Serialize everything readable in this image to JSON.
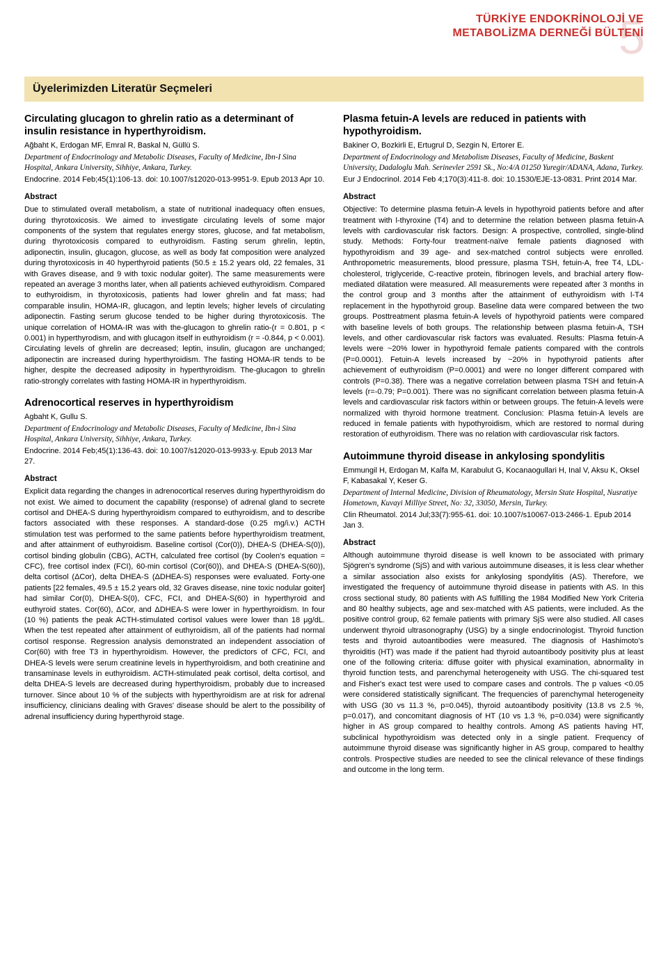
{
  "header": {
    "org_line1": "TÜRKİYE ENDOKRİNOLOJİ VE",
    "org_line2": "METABOLİZMA DERNEĞİ BÜLTENİ",
    "page_number": "5",
    "section_title": "Üyelerimizden Literatür Seçmeleri"
  },
  "colors": {
    "accent_red": "#c9302c",
    "strip_bg": "#f1e2b0",
    "pagenum_faint": "#f0d8d7",
    "text": "#000000",
    "bg": "#ffffff"
  },
  "left": {
    "a1": {
      "title": "Circulating glucagon to ghrelin ratio as a determinant of insulin resistance in hyperthyroidism.",
      "authors": "Ağbaht K, Erdogan MF, Emral R, Baskal N, Güllü S.",
      "affil": "Department of Endocrinology and Metabolic Diseases, Faculty of Medicine, Ibn-I Sina Hospital, Ankara University, Sihhiye, Ankara, Turkey.",
      "cite": "Endocrine. 2014 Feb;45(1):106-13. doi: 10.1007/s12020-013-9951-9. Epub 2013 Apr 10.",
      "abs_label": "Abstract",
      "abs": "Due to stimulated overall metabolism, a state of nutritional inadequacy often ensues, during thyrotoxicosis. We aimed to investigate circulating levels of some major components of the system that regulates energy stores, glucose, and fat metabolism, during thyrotoxicosis compared to euthyroidism. Fasting serum ghrelin, leptin, adiponectin, insulin, glucagon, glucose, as well as body fat composition were analyzed during thyrotoxicosis in 40 hyperthyroid patients (50.5 ± 15.2 years old, 22 females, 31 with Graves disease, and 9 with toxic nodular goiter). The same measurements were repeated an average 3 months later, when all patients achieved euthyroidism. Compared to euthyroidism, in thyrotoxicosis, patients had lower ghrelin and fat mass; had comparable insulin, HOMA-IR, glucagon, and leptin levels; higher levels of circulating adiponectin. Fasting serum glucose tended to be higher during thyrotoxicosis. The unique correlation of HOMA-IR was with the-glucagon to ghrelin ratio-(r = 0.801, p < 0.001) in hyperthyrodism, and with glucagon itself in euthyroidism (r = -0.844, p < 0.001). Circulating levels of ghrelin are decreased; leptin, insulin, glucagon are unchanged; adiponectin are increased during hyperthyroidism. The fasting HOMA-IR tends to be higher, despite the decreased adiposity in hyperthyroidism. The-glucagon to ghrelin ratio-strongly correlates with fasting HOMA-IR in hyperthyroidism."
    },
    "a2": {
      "title": "Adrenocortical reserves in hyperthyroidism",
      "authors": "Agbaht K, Gullu S.",
      "affil": "Department of Endocrinology and Metabolic Diseases, Faculty of Medicine, Ibn-i Sina Hospital, Ankara University, Sihhiye, Ankara, Turkey.",
      "cite": "Endocrine. 2014 Feb;45(1):136-43. doi: 10.1007/s12020-013-9933-y. Epub 2013 Mar 27.",
      "abs_label": "Abstract",
      "abs": "Explicit data regarding the changes in adrenocortical reserves during hyperthyroidism do not exist. We aimed to document the capability (response) of adrenal gland to secrete cortisol and DHEA-S during hyperthyroidism compared to euthyroidism, and to describe factors associated with these responses. A standard-dose (0.25 mg/i.v.) ACTH stimulation test was performed to the same patients before hyperthyroidism treatment, and after attainment of euthyroidism. Baseline cortisol (Cor(0)), DHEA-S (DHEA-S(0)), cortisol binding globulin (CBG), ACTH, calculated free cortisol (by Coolen's equation = CFC), free cortisol index (FCI), 60-min cortisol (Cor(60)), and DHEA-S (DHEA-S(60)), delta cortisol (ΔCor), delta DHEA-S (ΔDHEA-S) responses were evaluated. Forty-one patients [22 females, 49.5 ± 15.2 years old, 32 Graves disease, nine toxic nodular goiter] had similar Cor(0), DHEA-S(0), CFC, FCI, and DHEA-S(60) in hyperthyroid and euthyroid states. Cor(60), ΔCor, and ΔDHEA-S were lower in hyperthyroidism. In four (10 %) patients the peak ACTH-stimulated cortisol values were lower than 18 μg/dL. When the test repeated after attainment of euthyroidism, all of the patients had normal cortisol response. Regression analysis demonstrated an independent association of Cor(60) with free T3 in hyperthyroidism. However, the predictors of CFC, FCI, and DHEA-S levels were serum creatinine levels in hyperthyroidism, and both creatinine and transaminase levels in euthyroidism. ACTH-stimulated peak cortisol, delta cortisol, and delta DHEA-S levels are decreased during hyperthyroidism, probably due to increased turnover. Since about 10 % of the subjects with hyperthyroidism are at risk for adrenal insufficiency, clinicians dealing with Graves' disease should be alert to the possibility of adrenal insufficiency during hyperthyroid stage."
    }
  },
  "right": {
    "a1": {
      "title": "Plasma fetuin-A levels are reduced in patients with hypothyroidism.",
      "authors": "Bakiner O, Bozkirli E, Ertugrul D, Sezgin N, Ertorer E.",
      "affil": "Department of Endocrinology and Metabolism Diseases, Faculty of Medicine, Baskent University, Dadaloglu Mah. Serinevler 2591 Sk., No:4/A 01250 Yuregir/ADANA, Adana, Turkey.",
      "cite": "Eur J Endocrinol. 2014 Feb 4;170(3):411-8. doi: 10.1530/EJE-13-0831. Print 2014 Mar.",
      "abs_label": "Abstract",
      "abs": "Objective: To determine plasma fetuin-A levels in hypothyroid patients before and after treatment with l-thyroxine (T4) and to determine the relation between plasma fetuin-A levels with cardiovascular risk factors.\nDesign: A prospective, controlled, single-blind study.\nMethods: Forty-four treatment-naïve female patients diagnosed with hypothyroidism and 39 age- and sex-matched control subjects were enrolled. Anthropometric measurements, blood pressure, plasma TSH, fetuin-A, free T4, LDL-cholesterol, triglyceride, C-reactive protein, fibrinogen levels, and brachial artery flow-mediated dilatation were measured. All measurements were repeated after 3 months in the control group and 3 months after the attainment of euthyroidism with l-T4 replacement in the hypothyroid group. Baseline data were compared between the two groups. Posttreatment plasma fetuin-A levels of hypothyroid patients were compared with baseline levels of both groups. The relationship between plasma fetuin-A, TSH levels, and other cardiovascular risk factors was evaluated.\nResults: Plasma fetuin-A levels were ~20% lower in hypothyroid female patients compared with the controls (P=0.0001). Fetuin-A levels increased by ~20% in hypothyroid patients after achievement of euthyroidism (P=0.0001) and were no longer different compared with controls (P=0.38). There was a negative correlation between plasma TSH and fetuin-A levels (r=-0.79; P=0.001). There was no significant correlation between plasma fetuin-A levels and cardiovascular risk factors within or between groups. The fetuin-A levels were normalized with thyroid hormone treatment.\nConclusion: Plasma fetuin-A levels are reduced in female patients with hypothyroidism, which are restored to normal during restoration of euthyroidism. There was no relation with cardiovascular risk factors."
    },
    "a2": {
      "title": "Autoimmune thyroid disease in ankylosing spondylitis",
      "authors": "Emmungil H, Erdogan M, Kalfa M, Karabulut G, Kocanaogullari H, Inal V, Aksu K, Oksel F, Kabasakal Y, Keser G.",
      "affil": "Department of Internal Medicine, Division of Rheumatology, Mersin State Hospital, Nusratiye Hometown, Kuvayi Milliye Street, No: 32, 33050, Mersin, Turkey.",
      "cite": "Clin Rheumatol. 2014 Jul;33(7):955-61. doi: 10.1007/s10067-013-2466-1. Epub 2014 Jan 3.",
      "abs_label": "Abstract",
      "abs": "Although autoimmune thyroid disease is well known to be associated with primary Sjögren's syndrome (SjS) and with various autoimmune diseases, it is less clear whether a similar association also exists for ankylosing spondylitis (AS). Therefore, we investigated the frequency of autoimmune thyroid disease in patients with AS. In this cross sectional study, 80 patients with AS fulfilling the 1984 Modified New York Criteria and 80 healthy subjects, age and sex-matched with AS patients, were included. As the positive control group, 62 female patients with primary SjS were also studied. All cases underwent thyroid ultrasonography (USG) by a single endocrinologist. Thyroid function tests and thyroid autoantibodies were measured. The diagnosis of Hashimoto's thyroiditis (HT) was made if the patient had thyroid autoantibody positivity plus at least one of the following criteria: diffuse goiter with physical examination, abnormality in thyroid function tests, and parenchymal heterogeneity with USG. The chi-squared test and Fisher's exact test were used to compare cases and controls. The p values <0.05 were considered statistically significant. The frequencies of parenchymal heterogeneity with USG (30 vs 11.3 %, p=0.045), thyroid autoantibody positivity (13.8 vs 2.5 %, p=0.017), and concomitant diagnosis of HT (10 vs 1.3 %, p=0.034) were significantly higher in AS group compared to healthy controls. Among AS patients having HT, subclinical hypothyroidism was detected only in a single patient. Frequency of autoimmune thyroid disease was significantly higher in AS group, compared to healthy controls. Prospective studies are needed to see the clinical relevance of these findings and outcome in the long term."
    }
  }
}
